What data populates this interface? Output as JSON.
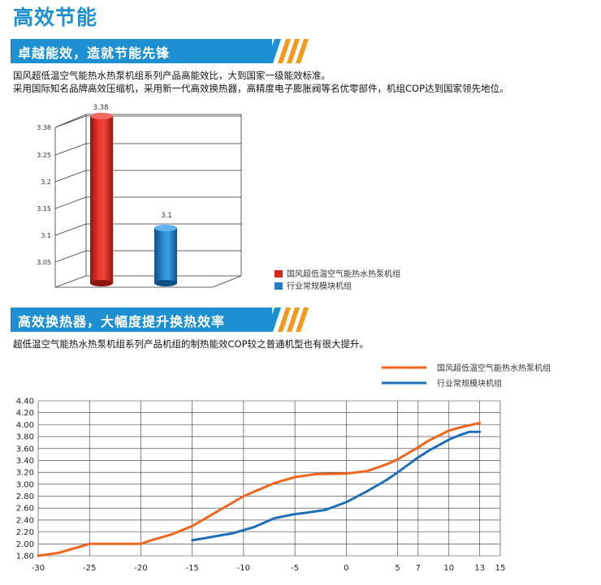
{
  "page": {
    "title": "高效节能"
  },
  "sections": [
    {
      "heading": "卓越能效，造就节能先锋",
      "text": [
        "国风超低温空气能热水热泵机组系列产品高能效比，大到国家一级能效标准。",
        "采用国际知名品牌高效压缩机，采用新一代高效换热器，高精度电子膨胀阀等名优零部件，机组COP达到国家领先地位。"
      ]
    },
    {
      "heading": "高效换热器，大幅度提升换热效率",
      "text": [
        "超低温空气能热水热泵机组系列产品机组的制热能效COP较之普通机型也有很大提升。"
      ]
    }
  ],
  "colors": {
    "accent": "#1e8fd0",
    "stripe": "#f39a1e",
    "red_series": "#d8261e",
    "blue_series": "#1f7fc8",
    "orange_line": "#f0661e",
    "blue_line": "#1e6fb8"
  },
  "chart_data": [
    {
      "type": "bar",
      "categories": [
        "国风超低温空气能热水热泵机组",
        "行业常规模块机组"
      ],
      "values": [
        3.38,
        3.1
      ],
      "value_labels": [
        "3.38",
        "3.1"
      ],
      "y_ticks": [
        "3.05",
        "3.1",
        "3.15",
        "3.2",
        "3.25",
        "3.38"
      ],
      "legend": [
        "国风超低温空气能热水热泵机组",
        "行业常规模块机组"
      ],
      "legend_position": "bottom-right",
      "grid": true
    },
    {
      "type": "line",
      "x_ticks": [
        "-30",
        "-25",
        "-20",
        "-15",
        "-10",
        "-5",
        "0",
        "5",
        "7",
        "10",
        "13",
        "15"
      ],
      "y_ticks": [
        "1.80",
        "2.00",
        "2.20",
        "2.40",
        "2.60",
        "2.80",
        "3.00",
        "3.20",
        "3.40",
        "3.60",
        "3.80",
        "4.00",
        "4.20",
        "4.40"
      ],
      "ylim": [
        1.8,
        4.4
      ],
      "grid": true,
      "legend_position": "top-right",
      "series": [
        {
          "name": "国风超低温空气能热水热泵机组",
          "points": [
            [
              -30,
              1.8
            ],
            [
              -28,
              1.85
            ],
            [
              -26,
              1.95
            ],
            [
              -25,
              2.0
            ],
            [
              -22,
              2.0
            ],
            [
              -20,
              2.0
            ],
            [
              -19,
              2.06
            ],
            [
              -17,
              2.16
            ],
            [
              -15,
              2.3
            ],
            [
              -13,
              2.5
            ],
            [
              -10,
              2.8
            ],
            [
              -7,
              3.02
            ],
            [
              -5,
              3.12
            ],
            [
              -3,
              3.17
            ],
            [
              0,
              3.18
            ],
            [
              2,
              3.22
            ],
            [
              4,
              3.34
            ],
            [
              5,
              3.42
            ],
            [
              7,
              3.62
            ],
            [
              8,
              3.73
            ],
            [
              10,
              3.9
            ],
            [
              11,
              3.95
            ],
            [
              12,
              3.99
            ],
            [
              13,
              4.03
            ]
          ]
        },
        {
          "name": "行业常规模块机组",
          "points": [
            [
              -15,
              2.06
            ],
            [
              -13,
              2.12
            ],
            [
              -11,
              2.18
            ],
            [
              -9,
              2.28
            ],
            [
              -7,
              2.43
            ],
            [
              -5,
              2.5
            ],
            [
              -4,
              2.52
            ],
            [
              -2,
              2.57
            ],
            [
              0,
              2.7
            ],
            [
              2,
              2.88
            ],
            [
              4,
              3.08
            ],
            [
              5,
              3.2
            ],
            [
              7,
              3.45
            ],
            [
              8,
              3.56
            ],
            [
              10,
              3.75
            ],
            [
              11,
              3.82
            ],
            [
              12,
              3.88
            ],
            [
              13,
              3.88
            ]
          ]
        }
      ]
    }
  ]
}
